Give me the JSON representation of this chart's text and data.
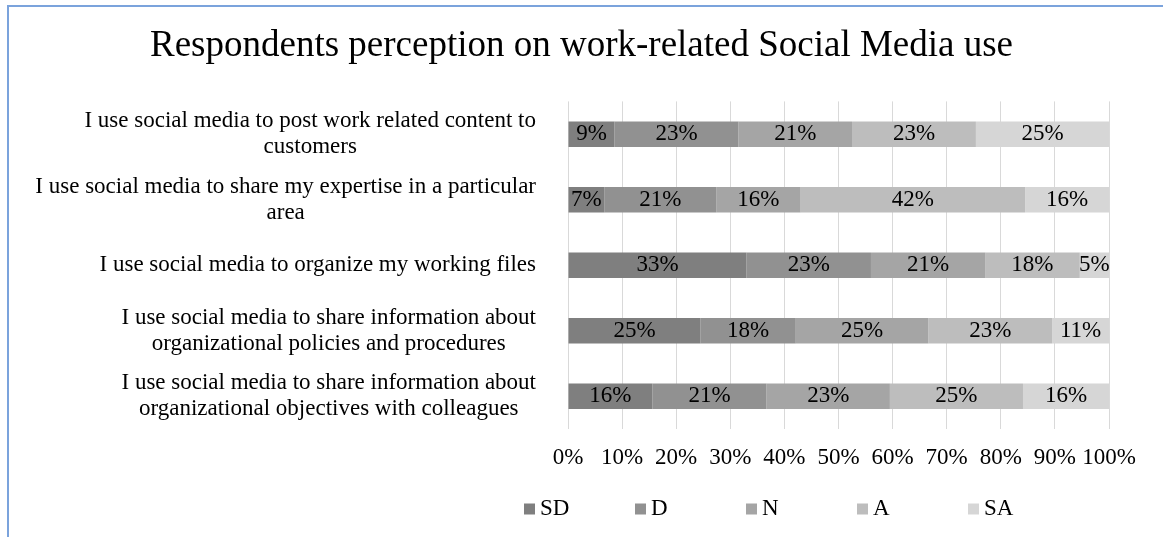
{
  "chart_data": {
    "type": "bar",
    "orientation": "horizontal",
    "stacked": true,
    "title": "Respondents perception on work-related Social Media use",
    "categories": [
      "I use social media to post work related content to customers",
      "I use social media to share my expertise in a particular area",
      "I use social media to organize my working files",
      "I use social media to share information about organizational policies and procedures",
      "I use social media to share information about organizational objectives with colleagues"
    ],
    "series": [
      {
        "name": "SD",
        "color": "#7f7f7f",
        "values": [
          8.6,
          6.7,
          33.0,
          24.5,
          15.6
        ],
        "value_labels": [
          "9%",
          "7%",
          "33%",
          "25%",
          "16%"
        ]
      },
      {
        "name": "D",
        "color": "#919191",
        "values": [
          22.9,
          20.7,
          23.0,
          17.6,
          21.1
        ],
        "value_labels": [
          "23%",
          "21%",
          "23%",
          "18%",
          "21%"
        ]
      },
      {
        "name": "N",
        "color": "#a5a5a5",
        "values": [
          21.0,
          15.6,
          21.1,
          24.5,
          22.8
        ],
        "value_labels": [
          "21%",
          "16%",
          "21%",
          "25%",
          "23%"
        ]
      },
      {
        "name": "A",
        "color": "#bdbdbd",
        "values": [
          22.9,
          41.5,
          17.5,
          22.9,
          24.6
        ],
        "value_labels": [
          "23%",
          "42%",
          "18%",
          "23%",
          "25%"
        ]
      },
      {
        "name": "SA",
        "color": "#d6d6d6",
        "values": [
          24.6,
          15.5,
          5.4,
          10.5,
          15.9
        ],
        "value_labels": [
          "25%",
          "16%",
          "5%",
          "11%",
          "16%"
        ]
      }
    ],
    "xlim": [
      0,
      100
    ],
    "xticks": [
      {
        "value": 0,
        "label": "0%"
      },
      {
        "value": 10,
        "label": "10%"
      },
      {
        "value": 20,
        "label": "20%"
      },
      {
        "value": 30,
        "label": "30%"
      },
      {
        "value": 40,
        "label": "40%"
      },
      {
        "value": 50,
        "label": "50%"
      },
      {
        "value": 60,
        "label": "60%"
      },
      {
        "value": 70,
        "label": "70%"
      },
      {
        "value": 80,
        "label": "80%"
      },
      {
        "value": 90,
        "label": "90%"
      },
      {
        "value": 100,
        "label": "100%"
      }
    ],
    "grid": "x",
    "legend": "bottom"
  }
}
